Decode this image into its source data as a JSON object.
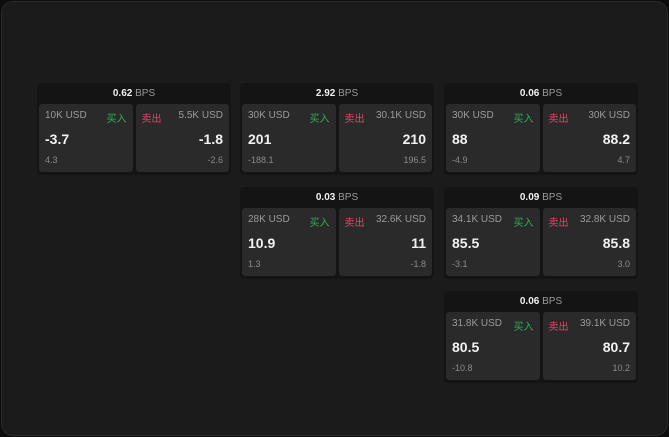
{
  "unit": "BPS",
  "buy_label": "买入",
  "sell_label": "卖出",
  "colors": {
    "buy": "#2fae5b",
    "sell": "#e0456b"
  },
  "cards": [
    {
      "spread": "0.62",
      "bid": {
        "size": "10K USD",
        "price": "-3.7",
        "change": "4.3"
      },
      "ask": {
        "size": "5.5K USD",
        "price": "-1.8",
        "change": "-2.6"
      }
    },
    {
      "spread": "2.92",
      "bid": {
        "size": "30K USD",
        "price": "201",
        "change": "-188.1"
      },
      "ask": {
        "size": "30.1K USD",
        "price": "210",
        "change": "196.5"
      }
    },
    {
      "spread": "0.06",
      "bid": {
        "size": "30K USD",
        "price": "88",
        "change": "-4.9"
      },
      "ask": {
        "size": "30K USD",
        "price": "88.2",
        "change": "4.7"
      }
    },
    {
      "spread": "0.03",
      "bid": {
        "size": "28K USD",
        "price": "10.9",
        "change": "1.3"
      },
      "ask": {
        "size": "32.6K USD",
        "price": "11",
        "change": "-1.8"
      }
    },
    {
      "spread": "0.09",
      "bid": {
        "size": "34.1K USD",
        "price": "85.5",
        "change": "-3.1"
      },
      "ask": {
        "size": "32.8K USD",
        "price": "85.8",
        "change": "3.0"
      }
    },
    {
      "spread": "0.06",
      "bid": {
        "size": "31.8K USD",
        "price": "80.5",
        "change": "-10.8"
      },
      "ask": {
        "size": "39.1K USD",
        "price": "80.7",
        "change": "10.2"
      }
    }
  ]
}
